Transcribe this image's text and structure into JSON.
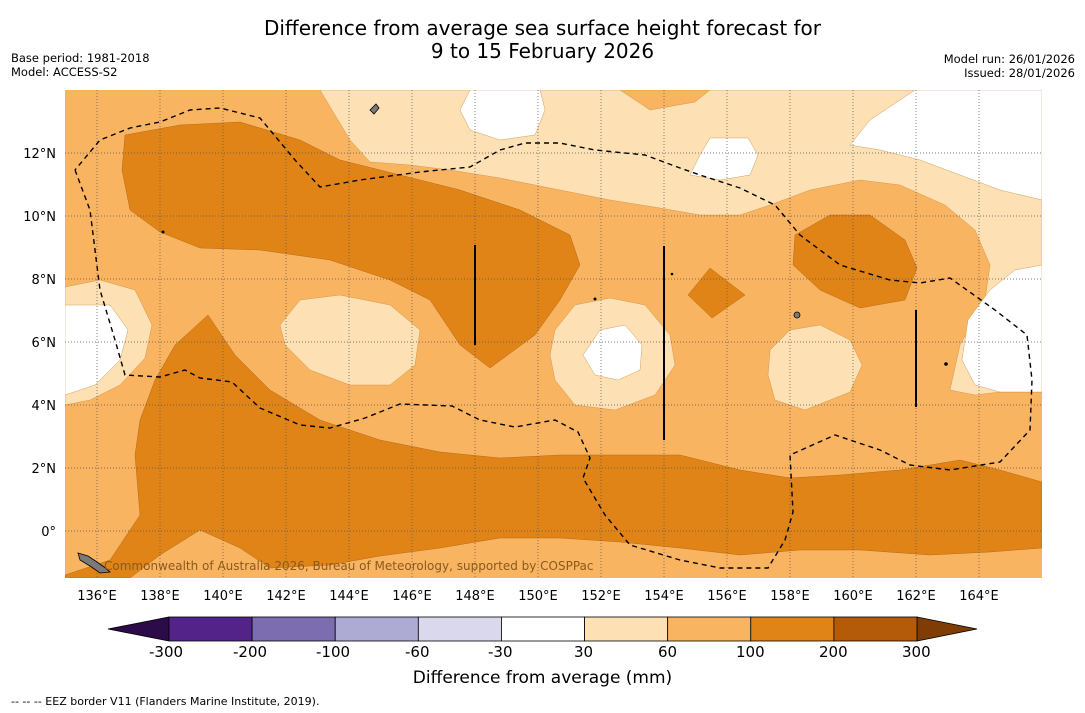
{
  "title": {
    "line1": "Difference from average sea surface height forecast for",
    "line2": "9 to 15 February 2026"
  },
  "meta": {
    "base_period": "Base period: 1981-2018",
    "model": "Model: ACCESS-S2",
    "model_run": "Model run: 26/01/2026",
    "issued": "Issued: 28/01/2026"
  },
  "map": {
    "lat_labels": [
      "12°N",
      "10°N",
      "8°N",
      "6°N",
      "4°N",
      "2°N",
      "0°"
    ],
    "lon_labels": [
      "136°E",
      "138°E",
      "140°E",
      "142°E",
      "144°E",
      "146°E",
      "148°E",
      "150°E",
      "152°E",
      "154°E",
      "156°E",
      "158°E",
      "160°E",
      "162°E",
      "164°E"
    ],
    "copyright": "Commonwealth of Australia 2026, Bureau of Meteorology, supported by COSPPac"
  },
  "colorbar": {
    "ticks": [
      "-300",
      "-200",
      "-100",
      "-60",
      "-30",
      "30",
      "60",
      "100",
      "200",
      "300"
    ],
    "colors": [
      "#54238a",
      "#7b6daf",
      "#adaad3",
      "#d9d8ec",
      "#ffffff",
      "#fde0b4",
      "#f9b462",
      "#e08418",
      "#b35b09"
    ],
    "low_extend_color": "#2d0a4a",
    "high_extend_color": "#7f3d05",
    "title": "Difference from average (mm)"
  },
  "colors": {
    "band_30_60": "#fde0b4",
    "band_60_100": "#f9b462",
    "band_100_200": "#e08418"
  },
  "footnote": "--  --  -- EEZ border V11 (Flanders Marine Institute, 2019)."
}
